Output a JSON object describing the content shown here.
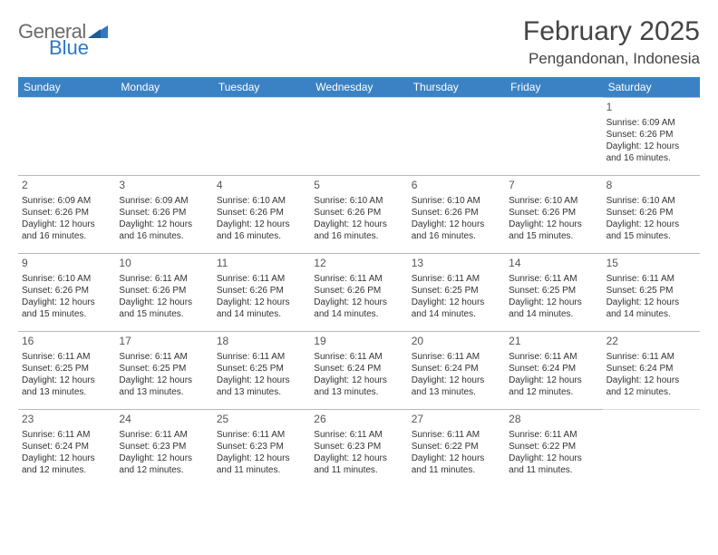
{
  "logo": {
    "text1": "General",
    "text2": "Blue"
  },
  "title": {
    "month": "February 2025",
    "location": "Pengandonan, Indonesia"
  },
  "colors": {
    "header_bg": "#3b82c4",
    "header_fg": "#ffffff",
    "page_bg": "#ffffff",
    "text": "#333333",
    "logo_gray": "#6b6b6b",
    "logo_blue": "#2f78c4",
    "rule": "#b8b8b8"
  },
  "typography": {
    "title_fontsize_pt": 22,
    "location_fontsize_pt": 13,
    "dayheader_fontsize_pt": 9,
    "cell_fontsize_pt": 8,
    "daynum_fontsize_pt": 9
  },
  "layout": {
    "columns": 7,
    "rows": 5,
    "leading_blanks": 6,
    "trailing_blanks": 1
  },
  "weekdays": [
    "Sunday",
    "Monday",
    "Tuesday",
    "Wednesday",
    "Thursday",
    "Friday",
    "Saturday"
  ],
  "days": [
    {
      "n": "1",
      "sunrise": "6:09 AM",
      "sunset": "6:26 PM",
      "daylight": "12 hours and 16 minutes."
    },
    {
      "n": "2",
      "sunrise": "6:09 AM",
      "sunset": "6:26 PM",
      "daylight": "12 hours and 16 minutes."
    },
    {
      "n": "3",
      "sunrise": "6:09 AM",
      "sunset": "6:26 PM",
      "daylight": "12 hours and 16 minutes."
    },
    {
      "n": "4",
      "sunrise": "6:10 AM",
      "sunset": "6:26 PM",
      "daylight": "12 hours and 16 minutes."
    },
    {
      "n": "5",
      "sunrise": "6:10 AM",
      "sunset": "6:26 PM",
      "daylight": "12 hours and 16 minutes."
    },
    {
      "n": "6",
      "sunrise": "6:10 AM",
      "sunset": "6:26 PM",
      "daylight": "12 hours and 16 minutes."
    },
    {
      "n": "7",
      "sunrise": "6:10 AM",
      "sunset": "6:26 PM",
      "daylight": "12 hours and 15 minutes."
    },
    {
      "n": "8",
      "sunrise": "6:10 AM",
      "sunset": "6:26 PM",
      "daylight": "12 hours and 15 minutes."
    },
    {
      "n": "9",
      "sunrise": "6:10 AM",
      "sunset": "6:26 PM",
      "daylight": "12 hours and 15 minutes."
    },
    {
      "n": "10",
      "sunrise": "6:11 AM",
      "sunset": "6:26 PM",
      "daylight": "12 hours and 15 minutes."
    },
    {
      "n": "11",
      "sunrise": "6:11 AM",
      "sunset": "6:26 PM",
      "daylight": "12 hours and 14 minutes."
    },
    {
      "n": "12",
      "sunrise": "6:11 AM",
      "sunset": "6:26 PM",
      "daylight": "12 hours and 14 minutes."
    },
    {
      "n": "13",
      "sunrise": "6:11 AM",
      "sunset": "6:25 PM",
      "daylight": "12 hours and 14 minutes."
    },
    {
      "n": "14",
      "sunrise": "6:11 AM",
      "sunset": "6:25 PM",
      "daylight": "12 hours and 14 minutes."
    },
    {
      "n": "15",
      "sunrise": "6:11 AM",
      "sunset": "6:25 PM",
      "daylight": "12 hours and 14 minutes."
    },
    {
      "n": "16",
      "sunrise": "6:11 AM",
      "sunset": "6:25 PM",
      "daylight": "12 hours and 13 minutes."
    },
    {
      "n": "17",
      "sunrise": "6:11 AM",
      "sunset": "6:25 PM",
      "daylight": "12 hours and 13 minutes."
    },
    {
      "n": "18",
      "sunrise": "6:11 AM",
      "sunset": "6:25 PM",
      "daylight": "12 hours and 13 minutes."
    },
    {
      "n": "19",
      "sunrise": "6:11 AM",
      "sunset": "6:24 PM",
      "daylight": "12 hours and 13 minutes."
    },
    {
      "n": "20",
      "sunrise": "6:11 AM",
      "sunset": "6:24 PM",
      "daylight": "12 hours and 13 minutes."
    },
    {
      "n": "21",
      "sunrise": "6:11 AM",
      "sunset": "6:24 PM",
      "daylight": "12 hours and 12 minutes."
    },
    {
      "n": "22",
      "sunrise": "6:11 AM",
      "sunset": "6:24 PM",
      "daylight": "12 hours and 12 minutes."
    },
    {
      "n": "23",
      "sunrise": "6:11 AM",
      "sunset": "6:24 PM",
      "daylight": "12 hours and 12 minutes."
    },
    {
      "n": "24",
      "sunrise": "6:11 AM",
      "sunset": "6:23 PM",
      "daylight": "12 hours and 12 minutes."
    },
    {
      "n": "25",
      "sunrise": "6:11 AM",
      "sunset": "6:23 PM",
      "daylight": "12 hours and 11 minutes."
    },
    {
      "n": "26",
      "sunrise": "6:11 AM",
      "sunset": "6:23 PM",
      "daylight": "12 hours and 11 minutes."
    },
    {
      "n": "27",
      "sunrise": "6:11 AM",
      "sunset": "6:22 PM",
      "daylight": "12 hours and 11 minutes."
    },
    {
      "n": "28",
      "sunrise": "6:11 AM",
      "sunset": "6:22 PM",
      "daylight": "12 hours and 11 minutes."
    }
  ],
  "labels": {
    "sunrise": "Sunrise:",
    "sunset": "Sunset:",
    "daylight": "Daylight:"
  }
}
